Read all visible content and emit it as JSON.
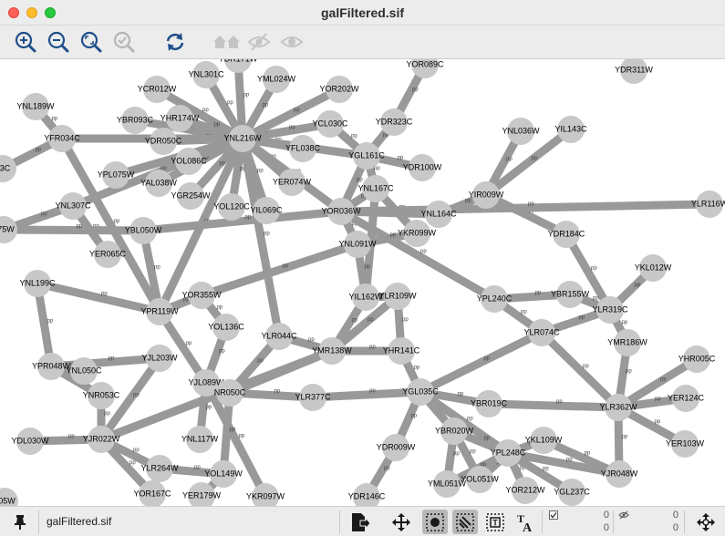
{
  "window": {
    "title": "galFiltered.sif"
  },
  "toolbar": {
    "buttons": [
      {
        "name": "zoom-in",
        "icon": "zoom-in-icon",
        "enabled": true
      },
      {
        "name": "zoom-out",
        "icon": "zoom-out-icon",
        "enabled": true
      },
      {
        "name": "zoom-fit",
        "icon": "zoom-fit-icon",
        "enabled": true
      },
      {
        "name": "zoom-selected",
        "icon": "zoom-selected-icon",
        "enabled": false
      },
      {
        "name": "refresh",
        "icon": "refresh-icon",
        "enabled": true
      },
      {
        "name": "home",
        "icon": "home-icon",
        "enabled": false
      },
      {
        "name": "hide",
        "icon": "eye-slash-icon",
        "enabled": false
      },
      {
        "name": "show",
        "icon": "eye-icon",
        "enabled": false
      }
    ]
  },
  "network": {
    "edge_label": "pp",
    "nodes": [
      {
        "id": "YDR171W",
        "label": "YDR171W"
      },
      {
        "id": "YNL301C",
        "label": "YNL301C"
      },
      {
        "id": "YML024W",
        "label": "YML024W"
      },
      {
        "id": "YOR089C",
        "label": "YOR089C"
      },
      {
        "id": "YDR311W",
        "label": "YDR311W"
      },
      {
        "id": "YCR012W",
        "label": "YCR012W"
      },
      {
        "id": "YOR202W",
        "label": "YOR202W"
      },
      {
        "id": "YNL189W",
        "label": "YNL189W"
      },
      {
        "id": "YBR093C",
        "label": "YBR093C"
      },
      {
        "id": "YHR174W",
        "label": "YHR174W"
      },
      {
        "id": "YCL030C",
        "label": "YCL030C"
      },
      {
        "id": "YDR323C",
        "label": "YDR323C"
      },
      {
        "id": "YIL143C",
        "label": "YIL143C"
      },
      {
        "id": "YFR034C",
        "label": "YFR034C"
      },
      {
        "id": "YDR050C",
        "label": "YDR050C"
      },
      {
        "id": "YNL216W",
        "label": "YNL216W"
      },
      {
        "id": "YNL036W",
        "label": "YNL036W"
      },
      {
        "id": "YFL038C",
        "label": "YFL038C"
      },
      {
        "id": "YGL161C",
        "label": "YGL161C"
      },
      {
        "id": "YOL086C",
        "label": "YOL086C"
      },
      {
        "id": "YLR123C",
        "label": "23C"
      },
      {
        "id": "YPL075W",
        "label": "YPL075W"
      },
      {
        "id": "YDR100W",
        "label": "YDR100W"
      },
      {
        "id": "YAL038W",
        "label": "YAL038W"
      },
      {
        "id": "YER074W",
        "label": "YER074W"
      },
      {
        "id": "YNL167C",
        "label": "YNL167C"
      },
      {
        "id": "YGR254W",
        "label": "YGR254W"
      },
      {
        "id": "YIR009W",
        "label": "YIR009W"
      },
      {
        "id": "YNL307C",
        "label": "YNL307C"
      },
      {
        "id": "YOL120C",
        "label": "YOL120C"
      },
      {
        "id": "YIL069C",
        "label": "YIL069C"
      },
      {
        "id": "YOR036W",
        "label": "YOR036W"
      },
      {
        "id": "YNL164C",
        "label": "YNL164C"
      },
      {
        "id": "YLR116W",
        "label": "YLR116W"
      },
      {
        "id": "YPR175W",
        "label": "175W"
      },
      {
        "id": "YBL050W",
        "label": "YBL050W"
      },
      {
        "id": "YKR099W",
        "label": "YKR099W"
      },
      {
        "id": "YDR184C",
        "label": "YDR184C"
      },
      {
        "id": "YNL091W",
        "label": "YNL091W"
      },
      {
        "id": "YER065C",
        "label": "YER065C"
      },
      {
        "id": "YKL012W",
        "label": "YKL012W"
      },
      {
        "id": "YNL199C",
        "label": "YNL199C"
      },
      {
        "id": "YOR355W",
        "label": "YOR355W"
      },
      {
        "id": "YIL162W",
        "label": "YIL162W"
      },
      {
        "id": "YLR109W",
        "label": "YLR109W"
      },
      {
        "id": "YPL240C",
        "label": "YPL240C"
      },
      {
        "id": "YBR155W",
        "label": "YBR155W"
      },
      {
        "id": "YPR119W",
        "label": "YPR119W"
      },
      {
        "id": "YLR319C",
        "label": "YLR319C"
      },
      {
        "id": "YOL136C",
        "label": "YOL136C"
      },
      {
        "id": "YLR044C",
        "label": "YLR044C"
      },
      {
        "id": "YLR074C",
        "label": "YLR074C"
      },
      {
        "id": "YMR186W",
        "label": "YMR186W"
      },
      {
        "id": "YMR138W",
        "label": "YMR138W"
      },
      {
        "id": "YHR141C",
        "label": "YHR141C"
      },
      {
        "id": "YJL203W",
        "label": "YJL203W"
      },
      {
        "id": "YPR048W",
        "label": "YPR048W"
      },
      {
        "id": "YNL050C",
        "label": "YNL050C"
      },
      {
        "id": "YHR005C",
        "label": "YHR005C"
      },
      {
        "id": "YJL089W",
        "label": "YJL089W"
      },
      {
        "id": "YNR053C",
        "label": "YNR053C"
      },
      {
        "id": "YNR050C",
        "label": "NR050C"
      },
      {
        "id": "YLR377C",
        "label": "YLR377C"
      },
      {
        "id": "YGL035C",
        "label": "YGL035C"
      },
      {
        "id": "YBR019C",
        "label": "YBR019C"
      },
      {
        "id": "YER124C",
        "label": "YER124C"
      },
      {
        "id": "YLR362W",
        "label": "YLR362W"
      },
      {
        "id": "YBR020W",
        "label": "YBR020W"
      },
      {
        "id": "YNL117W",
        "label": "YNL117W"
      },
      {
        "id": "YDL030W",
        "label": "YDL030W"
      },
      {
        "id": "YJR022W",
        "label": "YJR022W"
      },
      {
        "id": "YKL109W",
        "label": "YKL109W"
      },
      {
        "id": "YER103W",
        "label": "YER103W"
      },
      {
        "id": "YDR009W",
        "label": "YDR009W"
      },
      {
        "id": "YPL248C",
        "label": "YPL248C"
      },
      {
        "id": "YLR264W",
        "label": "YLR264W"
      },
      {
        "id": "YOL149W",
        "label": "YOL149W"
      },
      {
        "id": "YML051W",
        "label": "YML051W"
      },
      {
        "id": "YOL051W",
        "label": "YOL051W"
      },
      {
        "id": "YJR048W",
        "label": "YJR048W"
      },
      {
        "id": "YOR167C",
        "label": "YOR167C"
      },
      {
        "id": "YOR212W",
        "label": "YOR212W"
      },
      {
        "id": "YER179W",
        "label": "YER179W"
      },
      {
        "id": "YKR097W",
        "label": "YKR097W"
      },
      {
        "id": "YDR146C",
        "label": "YDR146C"
      },
      {
        "id": "YGL237C",
        "label": "YGL237C"
      },
      {
        "id": "YPR005W",
        "label": "005W"
      }
    ],
    "edges": [
      [
        "YNL216W",
        "YDR171W"
      ],
      [
        "YNL216W",
        "YNL301C"
      ],
      [
        "YNL216W",
        "YML024W"
      ],
      [
        "YNL216W",
        "YCR012W"
      ],
      [
        "YNL216W",
        "YBR093C"
      ],
      [
        "YNL216W",
        "YHR174W"
      ],
      [
        "YNL216W",
        "YDR050C"
      ],
      [
        "YNL216W",
        "YOL086C"
      ],
      [
        "YNL216W",
        "YPL075W"
      ],
      [
        "YNL216W",
        "YAL038W"
      ],
      [
        "YNL216W",
        "YGR254W"
      ],
      [
        "YNL216W",
        "YOL120C"
      ],
      [
        "YNL216W",
        "YIL069C"
      ],
      [
        "YNL216W",
        "YER074W"
      ],
      [
        "YNL216W",
        "YFL038C"
      ],
      [
        "YNL216W",
        "YCL030C"
      ],
      [
        "YNL216W",
        "YOR202W"
      ],
      [
        "YNL216W",
        "YFR034C"
      ],
      [
        "YNL216W",
        "YNL307C"
      ],
      [
        "YNL216W",
        "YOR036W"
      ],
      [
        "YNL216W",
        "YGL161C"
      ],
      [
        "YNL216W",
        "YLR044C"
      ],
      [
        "YNL216W",
        "YPR119W"
      ],
      [
        "YGL161C",
        "YDR323C"
      ],
      [
        "YGL161C",
        "YDR100W"
      ],
      [
        "YGL161C",
        "YNL167C"
      ],
      [
        "YGL161C",
        "YCL030C"
      ],
      [
        "YGL161C",
        "YOR036W"
      ],
      [
        "YDR323C",
        "YOR089C"
      ],
      [
        "YNL167C",
        "YIL162W"
      ],
      [
        "YNL167C",
        "YOR036W"
      ],
      [
        "YNL167C",
        "YKR099W"
      ],
      [
        "YIR009W",
        "YNL036W"
      ],
      [
        "YIR009W",
        "YIL143C"
      ],
      [
        "YIR009W",
        "YNL164C"
      ],
      [
        "YIR009W",
        "YDR184C"
      ],
      [
        "YOR036W",
        "YNL164C"
      ],
      [
        "YOR036W",
        "YNL091W"
      ],
      [
        "YOR036W",
        "YBL050W"
      ],
      [
        "YOR036W",
        "YPL240C"
      ],
      [
        "YOR036W",
        "YLR116W"
      ],
      [
        "YLR319C",
        "YDR184C"
      ],
      [
        "YLR319C",
        "YKL012W"
      ],
      [
        "YLR319C",
        "YBR155W"
      ],
      [
        "YLR319C",
        "YMR186W"
      ],
      [
        "YLR319C",
        "YLR074C"
      ],
      [
        "YPL240C",
        "YBR155W"
      ],
      [
        "YPL240C",
        "YLR074C"
      ],
      [
        "YLR074C",
        "YLR362W"
      ],
      [
        "YLR074C",
        "YGL035C"
      ],
      [
        "YLR362W",
        "YMR186W"
      ],
      [
        "YLR362W",
        "YHR005C"
      ],
      [
        "YLR362W",
        "YER124C"
      ],
      [
        "YLR362W",
        "YER103W"
      ],
      [
        "YLR362W",
        "YBR019C"
      ],
      [
        "YLR362W",
        "YJR048W"
      ],
      [
        "YGL035C",
        "YHR141C"
      ],
      [
        "YGL035C",
        "YLR377C"
      ],
      [
        "YGL035C",
        "YBR019C"
      ],
      [
        "YGL035C",
        "YBR020W"
      ],
      [
        "YGL035C",
        "YDR009W"
      ],
      [
        "YGL035C",
        "YPL248C"
      ],
      [
        "YMR138W",
        "YHR141C"
      ],
      [
        "YMR138W",
        "YLR109W"
      ],
      [
        "YMR138W",
        "YIL162W"
      ],
      [
        "YMR138W",
        "YLR044C"
      ],
      [
        "YMR138W",
        "YJR022W"
      ],
      [
        "YMR138W",
        "YNR050C"
      ],
      [
        "YLR109W",
        "YHR141C"
      ],
      [
        "YIL162W",
        "YLR109W"
      ],
      [
        "YPL248C",
        "YKL109W"
      ],
      [
        "YPL248C",
        "YBR020W"
      ],
      [
        "YPL248C",
        "YOL051W"
      ],
      [
        "YPL248C",
        "YOR212W"
      ],
      [
        "YPL248C",
        "YGL237C"
      ],
      [
        "YPL248C",
        "YJR048W"
      ],
      [
        "YPL248C",
        "YML051W"
      ],
      [
        "YBR020W",
        "YML051W"
      ],
      [
        "YBR020W",
        "YOL051W"
      ],
      [
        "YKL109W",
        "YJR048W"
      ],
      [
        "YDR009W",
        "YDR146C"
      ],
      [
        "YPR119W",
        "YOR355W"
      ],
      [
        "YPR119W",
        "YNL199C"
      ],
      [
        "YPR119W",
        "YFR034C"
      ],
      [
        "YPR119W",
        "YJL089W"
      ],
      [
        "YPR119W",
        "YBL050W"
      ],
      [
        "YJL089W",
        "YNR050C"
      ],
      [
        "YJL089W",
        "YOL136C"
      ],
      [
        "YJL089W",
        "YKR097W"
      ],
      [
        "YJL089W",
        "YNL117W"
      ],
      [
        "YNR050C",
        "YLR377C"
      ],
      [
        "YNR050C",
        "YLR044C"
      ],
      [
        "YNR050C",
        "YOL149W"
      ],
      [
        "YJR022W",
        "YNR053C"
      ],
      [
        "YJR022W",
        "YJL203W"
      ],
      [
        "YJR022W",
        "YDL030W"
      ],
      [
        "YJR022W",
        "YLR264W"
      ],
      [
        "YJR022W",
        "YOR167C"
      ],
      [
        "YJR022W",
        "YMR138W"
      ],
      [
        "YJL203W",
        "YPR048W"
      ],
      [
        "YPR048W",
        "YNL050C"
      ],
      [
        "YPR048W",
        "YNL199C"
      ],
      [
        "YPR048W",
        "YNR053C"
      ],
      [
        "YOL149W",
        "YER179W"
      ],
      [
        "YOL149W",
        "YLR264W"
      ],
      [
        "YFR034C",
        "YNL189W"
      ],
      [
        "YFR034C",
        "YLR123C"
      ],
      [
        "YNL307C",
        "YPR175W"
      ],
      [
        "YNL307C",
        "YER065C"
      ],
      [
        "YBL050W",
        "YPR175W"
      ],
      [
        "YNL091W",
        "YKR099W"
      ],
      [
        "YNL091W",
        "YIL162W"
      ],
      [
        "YOR355W",
        "YOL136C"
      ],
      [
        "YOR355W",
        "YNL091W"
      ]
    ]
  },
  "statusbar": {
    "network_name": "galFiltered.sif",
    "selected_nodes": "0",
    "selected_edges": "0",
    "hidden_nodes": "0",
    "hidden_edges": "0",
    "icons": [
      "pin-icon",
      "export-icon",
      "move-icon",
      "select-nodes-icon",
      "select-edges-icon",
      "annotation-text-icon",
      "font-icon",
      "navigate-icon",
      "checkbox-icon",
      "eye-slash-icon"
    ]
  }
}
